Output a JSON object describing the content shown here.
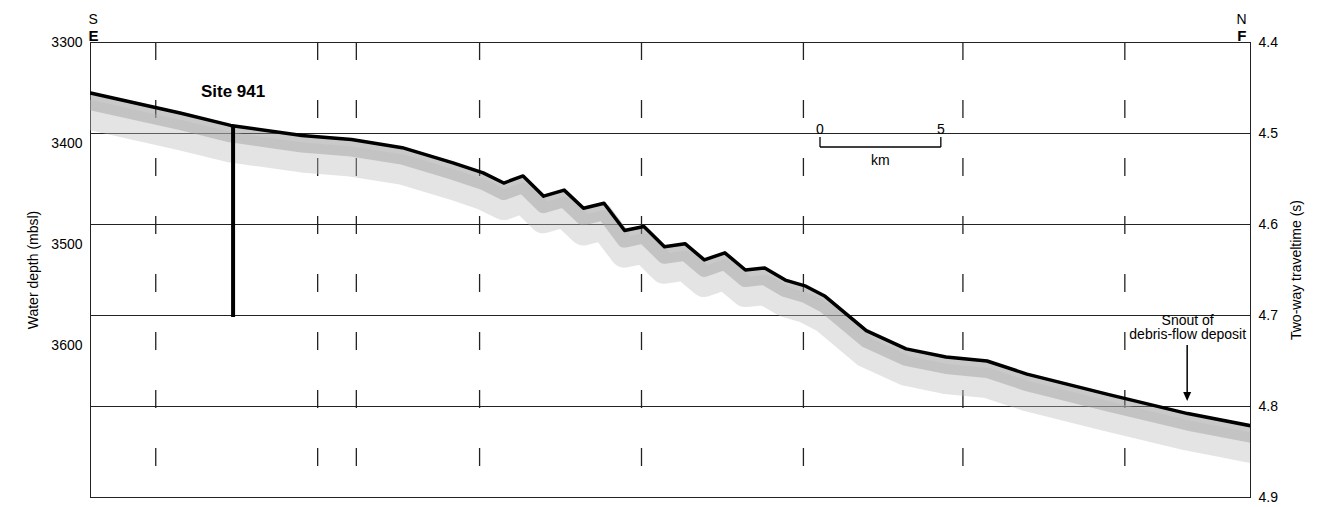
{
  "chart_data": {
    "type": "line",
    "y_label": "Water depth (mbsl)",
    "y2_label": "Two-way traveltime (s)",
    "xlim": [
      0,
      48
    ],
    "ylim": [
      3300,
      3750
    ],
    "yticks": [
      3300,
      3400,
      3500,
      3600
    ],
    "y2lim": [
      4.4,
      4.9
    ],
    "y2ticks": [
      4.4,
      4.5,
      4.6,
      4.7,
      4.8,
      4.9
    ],
    "grid": true,
    "tick_labels": "y",
    "color": "#000000",
    "x": [
      0,
      3.75,
      5.8,
      8.75,
      10.8,
      12.9,
      15,
      16.25,
      17.1,
      17.9,
      18.75,
      19.6,
      20.4,
      21.25,
      22.1,
      22.9,
      23.75,
      24.6,
      25.4,
      26.25,
      27.1,
      27.9,
      28.75,
      29.6,
      30.4,
      32.1,
      33.75,
      35.4,
      37.1,
      38.75,
      42.1,
      45.4,
      48
    ],
    "values": [
      3350,
      3370,
      3382,
      3392,
      3396,
      3404,
      3419,
      3429,
      3439,
      3432,
      3452,
      3446,
      3464,
      3459,
      3486,
      3482,
      3502,
      3499,
      3515,
      3508,
      3525,
      3523,
      3535,
      3541,
      3551,
      3585,
      3603,
      3611,
      3615,
      3628,
      3648,
      3667,
      3679
    ],
    "fix_marks": [
      2.7,
      9.4,
      11.0,
      16.1,
      22.8,
      29.5,
      36.1,
      42.8
    ],
    "corner_labels": {
      "left": [
        "S",
        "E"
      ],
      "right": [
        "N",
        "F"
      ]
    },
    "site": {
      "label": "Site 941",
      "x": 5.9,
      "depth": [
        3382,
        3572
      ]
    },
    "annotation": {
      "text": "Snout of debris-flow deposit",
      "x": 45.4,
      "depth": 3655
    },
    "scale_bar": {
      "values": [
        0,
        5
      ],
      "unit": "km"
    }
  }
}
